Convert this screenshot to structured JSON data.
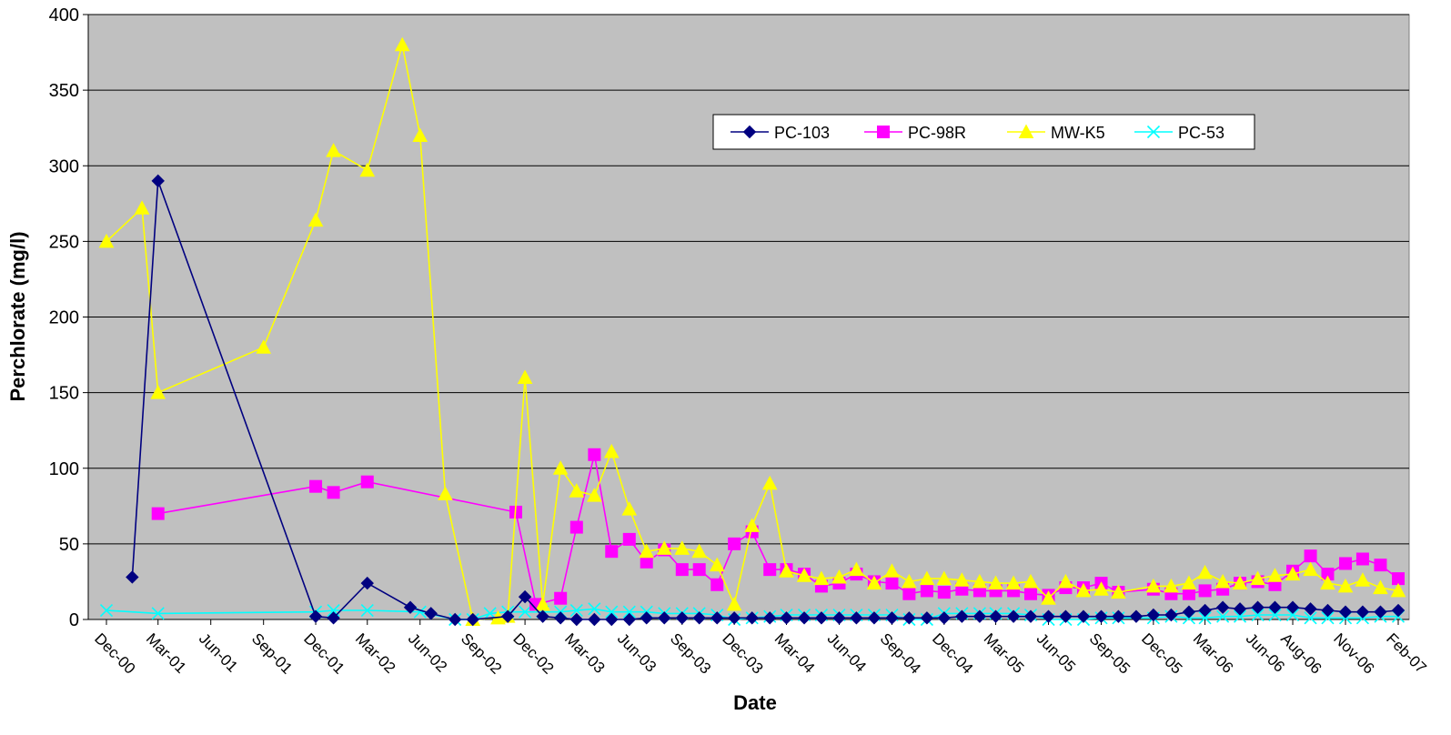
{
  "chart_data": {
    "type": "line",
    "title": "",
    "xlabel": "Date",
    "ylabel": "Perchlorate (mg/l)",
    "ylim": [
      0,
      400
    ],
    "yticks": [
      0,
      50,
      100,
      150,
      200,
      250,
      300,
      350,
      400
    ],
    "xlim": [
      "2000-12-01",
      "2007-02-01"
    ],
    "xtick_labels": [
      "Dec-00",
      "Mar-01",
      "Jun-01",
      "Sep-01",
      "Dec-01",
      "Mar-02",
      "Jun-02",
      "Sep-02",
      "Dec-02",
      "Mar-03",
      "Jun-03",
      "Sep-03",
      "Dec-03",
      "Mar-04",
      "Jun-04",
      "Sep-04",
      "Dec-04",
      "Mar-05",
      "Jun-05",
      "Sep-05",
      "Dec-05",
      "Mar-06",
      "Jun-06",
      "Aug-06",
      "Nov-06",
      "Feb-07"
    ],
    "xtick_dates": [
      "2000-12-01",
      "2001-03-01",
      "2001-06-01",
      "2001-09-01",
      "2001-12-01",
      "2002-03-01",
      "2002-06-01",
      "2002-09-01",
      "2002-12-01",
      "2003-03-01",
      "2003-06-01",
      "2003-09-01",
      "2003-12-01",
      "2004-03-01",
      "2004-06-01",
      "2004-09-01",
      "2004-12-01",
      "2005-03-01",
      "2005-06-01",
      "2005-09-01",
      "2005-12-01",
      "2006-03-01",
      "2006-06-01",
      "2006-08-01",
      "2006-11-01",
      "2007-02-01"
    ],
    "plot_background": "#C0C0C0",
    "grid": "horizontal",
    "legend_position": "top-right inside",
    "series": [
      {
        "name": "PC-103",
        "color": "#000080",
        "marker": "diamond",
        "points": [
          [
            "2001-01-15",
            28
          ],
          [
            "2001-03-01",
            290
          ],
          [
            "2001-12-01",
            2
          ],
          [
            "2002-01-01",
            1
          ],
          [
            "2002-03-01",
            24
          ],
          [
            "2002-05-15",
            8
          ],
          [
            "2002-06-20",
            4
          ],
          [
            "2002-08-01",
            0
          ],
          [
            "2002-09-01",
            0
          ],
          [
            "2002-11-01",
            2
          ],
          [
            "2002-12-01",
            15
          ],
          [
            "2003-01-01",
            2
          ],
          [
            "2003-02-01",
            1
          ],
          [
            "2003-03-01",
            0
          ],
          [
            "2003-04-01",
            0
          ],
          [
            "2003-05-01",
            0
          ],
          [
            "2003-06-01",
            0
          ],
          [
            "2003-07-01",
            1
          ],
          [
            "2003-08-01",
            1
          ],
          [
            "2003-09-01",
            1
          ],
          [
            "2003-10-01",
            1
          ],
          [
            "2003-11-01",
            1
          ],
          [
            "2003-12-01",
            1
          ],
          [
            "2004-01-01",
            1
          ],
          [
            "2004-02-01",
            1
          ],
          [
            "2004-03-01",
            1
          ],
          [
            "2004-04-01",
            1
          ],
          [
            "2004-05-01",
            1
          ],
          [
            "2004-06-01",
            1
          ],
          [
            "2004-07-01",
            1
          ],
          [
            "2004-08-01",
            1
          ],
          [
            "2004-09-01",
            1
          ],
          [
            "2004-10-01",
            1
          ],
          [
            "2004-11-01",
            1
          ],
          [
            "2004-12-01",
            1
          ],
          [
            "2005-01-01",
            2
          ],
          [
            "2005-02-01",
            2
          ],
          [
            "2005-03-01",
            2
          ],
          [
            "2005-04-01",
            2
          ],
          [
            "2005-05-01",
            2
          ],
          [
            "2005-06-01",
            2
          ],
          [
            "2005-07-01",
            2
          ],
          [
            "2005-08-01",
            2
          ],
          [
            "2005-09-01",
            2
          ],
          [
            "2005-10-01",
            2
          ],
          [
            "2005-11-01",
            2
          ],
          [
            "2005-12-01",
            3
          ],
          [
            "2006-01-01",
            3
          ],
          [
            "2006-02-01",
            5
          ],
          [
            "2006-03-01",
            6
          ],
          [
            "2006-04-01",
            8
          ],
          [
            "2006-05-01",
            7
          ],
          [
            "2006-06-01",
            8
          ],
          [
            "2006-07-01",
            8
          ],
          [
            "2006-08-01",
            8
          ],
          [
            "2006-09-01",
            7
          ],
          [
            "2006-10-01",
            6
          ],
          [
            "2006-11-01",
            5
          ],
          [
            "2006-12-01",
            5
          ],
          [
            "2007-01-01",
            5
          ],
          [
            "2007-02-01",
            6
          ]
        ]
      },
      {
        "name": "PC-98R",
        "color": "#FF00FF",
        "marker": "square",
        "points": [
          [
            "2001-03-01",
            70
          ],
          [
            "2001-12-01",
            88
          ],
          [
            "2002-01-01",
            84
          ],
          [
            "2002-03-01",
            91
          ],
          [
            "2002-11-15",
            71
          ],
          [
            "2002-12-20",
            10
          ],
          [
            "2003-02-01",
            14
          ],
          [
            "2003-03-01",
            61
          ],
          [
            "2003-04-01",
            109
          ],
          [
            "2003-05-01",
            45
          ],
          [
            "2003-06-01",
            53
          ],
          [
            "2003-07-01",
            38
          ],
          [
            "2003-08-01",
            46
          ],
          [
            "2003-09-01",
            33
          ],
          [
            "2003-10-01",
            33
          ],
          [
            "2003-11-01",
            23
          ],
          [
            "2003-12-01",
            50
          ],
          [
            "2004-01-01",
            58
          ],
          [
            "2004-02-01",
            33
          ],
          [
            "2004-03-01",
            33
          ],
          [
            "2004-04-01",
            30
          ],
          [
            "2004-05-01",
            22
          ],
          [
            "2004-06-01",
            24
          ],
          [
            "2004-07-01",
            30
          ],
          [
            "2004-08-01",
            25
          ],
          [
            "2004-09-01",
            24
          ],
          [
            "2004-10-01",
            17
          ],
          [
            "2004-11-01",
            19
          ],
          [
            "2004-12-01",
            18
          ],
          [
            "2005-01-01",
            20
          ],
          [
            "2005-02-01",
            19
          ],
          [
            "2005-03-01",
            19
          ],
          [
            "2005-04-01",
            19
          ],
          [
            "2005-05-01",
            17
          ],
          [
            "2005-06-01",
            16
          ],
          [
            "2005-07-01",
            21
          ],
          [
            "2005-08-01",
            21
          ],
          [
            "2005-09-01",
            24
          ],
          [
            "2005-10-01",
            18
          ],
          [
            "2005-12-01",
            20
          ],
          [
            "2006-01-01",
            17
          ],
          [
            "2006-02-01",
            17
          ],
          [
            "2006-03-01",
            19
          ],
          [
            "2006-04-01",
            20
          ],
          [
            "2006-05-01",
            24
          ],
          [
            "2006-06-01",
            25
          ],
          [
            "2006-07-01",
            23
          ],
          [
            "2006-08-01",
            32
          ],
          [
            "2006-09-01",
            42
          ],
          [
            "2006-10-01",
            30
          ],
          [
            "2006-11-01",
            37
          ],
          [
            "2006-12-01",
            40
          ],
          [
            "2007-01-01",
            36
          ],
          [
            "2007-02-01",
            27
          ]
        ]
      },
      {
        "name": "MW-K5",
        "color": "#FFFF00",
        "marker": "triangle",
        "points": [
          [
            "2000-12-01",
            250
          ],
          [
            "2001-02-01",
            272
          ],
          [
            "2001-03-01",
            150
          ],
          [
            "2001-09-01",
            180
          ],
          [
            "2001-12-01",
            264
          ],
          [
            "2002-01-01",
            310
          ],
          [
            "2002-03-01",
            297
          ],
          [
            "2002-05-01",
            380
          ],
          [
            "2002-06-01",
            320
          ],
          [
            "2002-07-15",
            83
          ],
          [
            "2002-09-01",
            0
          ],
          [
            "2002-10-15",
            1
          ],
          [
            "2002-11-01",
            2
          ],
          [
            "2002-12-01",
            160
          ],
          [
            "2003-01-01",
            10
          ],
          [
            "2003-02-01",
            100
          ],
          [
            "2003-03-01",
            85
          ],
          [
            "2003-04-01",
            82
          ],
          [
            "2003-05-01",
            111
          ],
          [
            "2003-06-01",
            73
          ],
          [
            "2003-07-01",
            45
          ],
          [
            "2003-08-01",
            47
          ],
          [
            "2003-09-01",
            47
          ],
          [
            "2003-10-01",
            45
          ],
          [
            "2003-11-01",
            36
          ],
          [
            "2003-12-01",
            10
          ],
          [
            "2004-01-01",
            62
          ],
          [
            "2004-02-01",
            90
          ],
          [
            "2004-03-01",
            32
          ],
          [
            "2004-04-01",
            29
          ],
          [
            "2004-05-01",
            27
          ],
          [
            "2004-06-01",
            28
          ],
          [
            "2004-07-01",
            33
          ],
          [
            "2004-08-01",
            24
          ],
          [
            "2004-09-01",
            32
          ],
          [
            "2004-10-01",
            25
          ],
          [
            "2004-11-01",
            27
          ],
          [
            "2004-12-01",
            27
          ],
          [
            "2005-01-01",
            26
          ],
          [
            "2005-02-01",
            25
          ],
          [
            "2005-03-01",
            24
          ],
          [
            "2005-04-01",
            24
          ],
          [
            "2005-05-01",
            25
          ],
          [
            "2005-06-01",
            14
          ],
          [
            "2005-07-01",
            25
          ],
          [
            "2005-08-01",
            19
          ],
          [
            "2005-09-01",
            20
          ],
          [
            "2005-10-01",
            18
          ],
          [
            "2005-12-01",
            22
          ],
          [
            "2006-01-01",
            22
          ],
          [
            "2006-02-01",
            24
          ],
          [
            "2006-03-01",
            31
          ],
          [
            "2006-04-01",
            25
          ],
          [
            "2006-05-01",
            24
          ],
          [
            "2006-06-01",
            27
          ],
          [
            "2006-07-01",
            29
          ],
          [
            "2006-08-01",
            30
          ],
          [
            "2006-09-01",
            33
          ],
          [
            "2006-10-01",
            24
          ],
          [
            "2006-11-01",
            22
          ],
          [
            "2006-12-01",
            26
          ],
          [
            "2007-01-01",
            21
          ],
          [
            "2007-02-01",
            19
          ]
        ]
      },
      {
        "name": "PC-53",
        "color": "#00FFFF",
        "marker": "x",
        "points": [
          [
            "2000-12-01",
            6
          ],
          [
            "2001-03-01",
            4
          ],
          [
            "2001-12-01",
            5
          ],
          [
            "2002-01-01",
            6
          ],
          [
            "2002-03-01",
            6
          ],
          [
            "2002-06-01",
            5
          ],
          [
            "2002-08-01",
            0
          ],
          [
            "2002-09-01",
            0
          ],
          [
            "2002-10-01",
            4
          ],
          [
            "2002-11-01",
            5
          ],
          [
            "2002-12-01",
            5
          ],
          [
            "2003-01-01",
            5
          ],
          [
            "2003-02-01",
            5
          ],
          [
            "2003-03-01",
            6
          ],
          [
            "2003-04-01",
            7
          ],
          [
            "2003-05-01",
            5
          ],
          [
            "2003-06-01",
            5
          ],
          [
            "2003-07-01",
            5
          ],
          [
            "2003-08-01",
            4
          ],
          [
            "2003-09-01",
            4
          ],
          [
            "2003-10-01",
            4
          ],
          [
            "2003-11-01",
            3
          ],
          [
            "2003-12-01",
            0
          ],
          [
            "2004-01-01",
            1
          ],
          [
            "2004-02-01",
            2
          ],
          [
            "2004-03-01",
            3
          ],
          [
            "2004-04-01",
            3
          ],
          [
            "2004-05-01",
            3
          ],
          [
            "2004-06-01",
            3
          ],
          [
            "2004-07-01",
            3
          ],
          [
            "2004-08-01",
            3
          ],
          [
            "2004-09-01",
            3
          ],
          [
            "2004-10-01",
            0
          ],
          [
            "2004-11-01",
            0
          ],
          [
            "2004-12-01",
            4
          ],
          [
            "2005-01-01",
            4
          ],
          [
            "2005-02-01",
            4
          ],
          [
            "2005-03-01",
            4
          ],
          [
            "2005-04-01",
            4
          ],
          [
            "2005-05-01",
            3
          ],
          [
            "2005-06-01",
            0
          ],
          [
            "2005-07-01",
            0
          ],
          [
            "2005-08-01",
            0
          ],
          [
            "2005-09-01",
            1
          ],
          [
            "2005-10-01",
            1
          ],
          [
            "2005-12-01",
            1
          ],
          [
            "2006-01-01",
            2
          ],
          [
            "2006-02-01",
            1
          ],
          [
            "2006-03-01",
            1
          ],
          [
            "2006-04-01",
            2
          ],
          [
            "2006-05-01",
            2
          ],
          [
            "2006-06-01",
            3
          ],
          [
            "2006-07-01",
            3
          ],
          [
            "2006-08-01",
            3
          ],
          [
            "2006-09-01",
            1
          ],
          [
            "2006-10-01",
            1
          ],
          [
            "2006-11-01",
            1
          ],
          [
            "2006-12-01",
            1
          ],
          [
            "2007-01-01",
            2
          ],
          [
            "2007-02-01",
            2
          ]
        ]
      }
    ]
  }
}
